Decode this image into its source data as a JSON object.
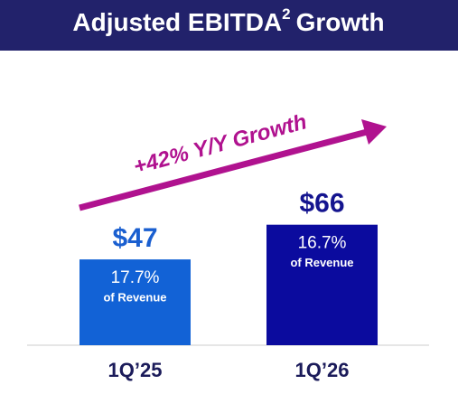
{
  "chart_data": {
    "type": "bar",
    "title": "Adjusted EBITDA",
    "title_superscript": "2",
    "title_suffix": "Growth",
    "annotation": "+42% Y/Y Growth",
    "categories": [
      "1Q’25",
      "1Q’26"
    ],
    "values": [
      47,
      66
    ],
    "value_labels": [
      "$47",
      "$66"
    ],
    "colors": [
      "#1262d6",
      "#0b0b9e"
    ],
    "value_label_colors": [
      "#1a5fd0",
      "#14148f"
    ],
    "margins": [
      17.7,
      16.7
    ],
    "margin_labels": [
      "17.7%",
      "16.7%"
    ],
    "margin_caption": "of Revenue"
  }
}
